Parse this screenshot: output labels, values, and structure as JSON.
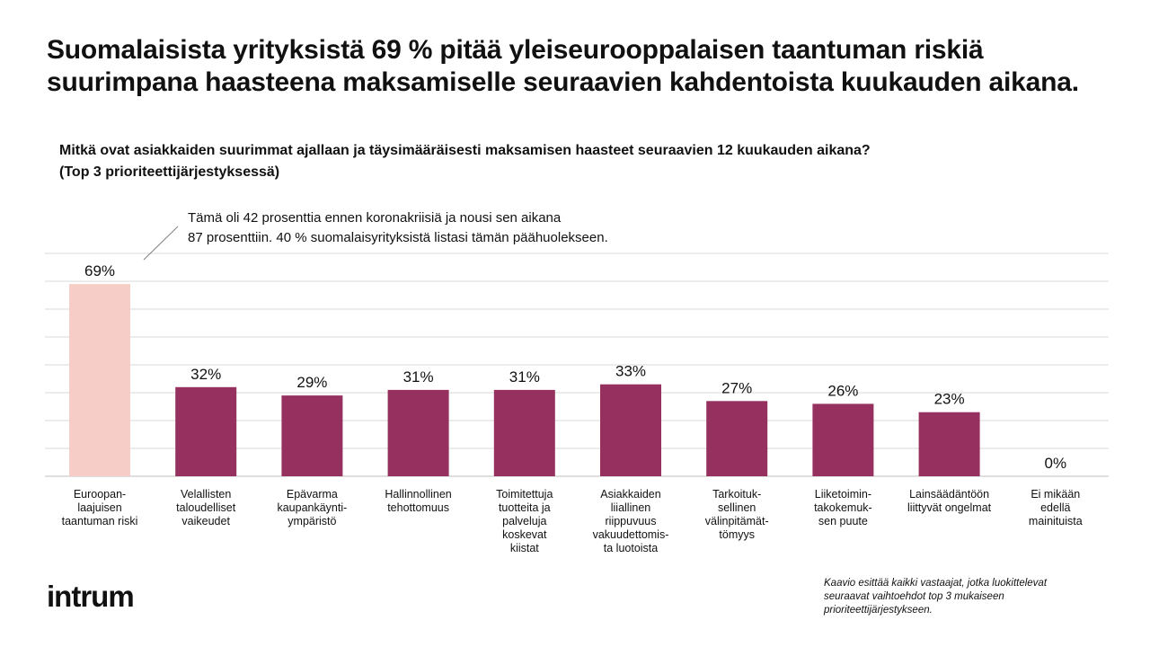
{
  "header": {
    "title": "Suomalaisista yrityksistä 69 % pitää yleiseurooppalaisen taantuman riskiä suurimpana haasteena maksamiselle seuraavien kahdentoista kuukauden aikana.",
    "subtitle_line1": "Mitkä ovat asiakkaiden suurimmat ajallaan ja täysimääräisesti maksamisen haasteet seuraavien 12 kuukauden aikana?",
    "subtitle_line2": "(Top 3 prioriteettijärjestyksessä)"
  },
  "annotation": {
    "line1": "Tämä oli 42 prosenttia ennen koronakriisiä ja nousi sen aikana",
    "line2": "87 prosenttiin. 40 % suomalaisyrityksistä listasi tämän päähuolekseen."
  },
  "chart_data": {
    "type": "bar",
    "categories": [
      "Euroopan-\nlaajuisen\ntaantuman riski",
      "Velallisten\ntaloudelliset\nvaikeudet",
      "Epävarma\nkaupankäynti-\nympäristö",
      "Hallinnollinen\ntehottomuus",
      "Toimitettuja\ntuotteita ja\npalveluja\nkoskevat\nkiistat",
      "Asiakkaiden\nliiallinen\nriippuvuus\nvakuudettomis-\nta luotoista",
      "Tarkoituk-\nsellinen\nvälinpitämät-\ntömyys",
      "Liiketoimin-\ntakokemuk-\nsen puute",
      "Lainsäädäntöön\nliittyvät ongelmat",
      "Ei mikään\nedellä\nmainituista"
    ],
    "values": [
      69,
      32,
      29,
      31,
      31,
      33,
      27,
      26,
      23,
      0
    ],
    "value_labels": [
      "69%",
      "32%",
      "29%",
      "31%",
      "31%",
      "33%",
      "27%",
      "26%",
      "23%",
      "0%"
    ],
    "highlight_index": 0,
    "colors": {
      "bar": "#95305f",
      "highlight": "#f7cdc8",
      "grid": "#d9d9d9"
    },
    "ylim": [
      0,
      80
    ],
    "grid": true,
    "gridline_step": 10
  },
  "brand": {
    "logo": "intrum"
  },
  "footnote": {
    "line1": "Kaavio esittää kaikki vastaajat, jotka luokittelevat",
    "line2": "seuraavat vaihtoehdot top 3 mukaiseen",
    "line3": "prioriteettijärjestykseen."
  }
}
